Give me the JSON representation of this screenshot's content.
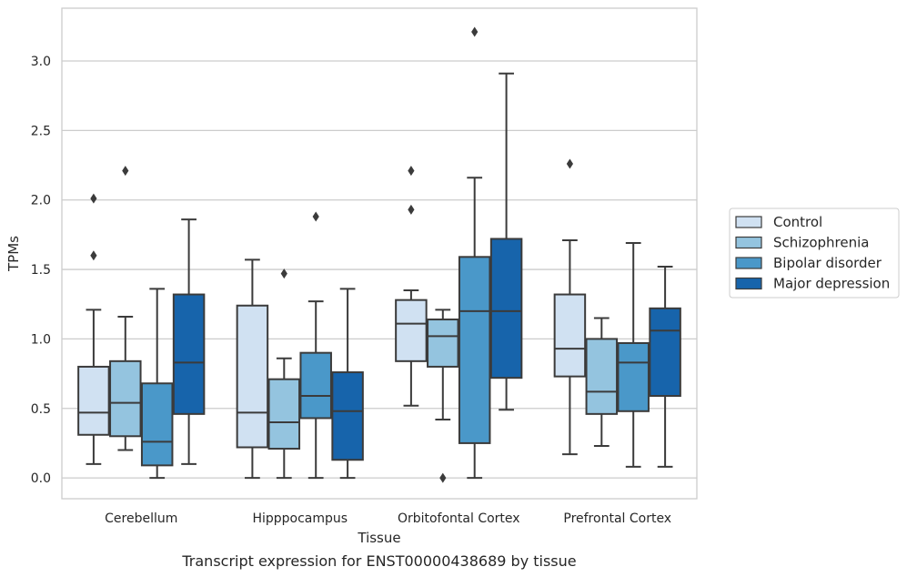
{
  "chart_data": {
    "type": "box",
    "title": "",
    "caption": "Transcript expression for ENST00000438689 by tissue",
    "xlabel": "Tissue",
    "ylabel": "TPMs",
    "ylim": [
      -0.15,
      3.38
    ],
    "yticks": [
      "0.0",
      "0.5",
      "1.0",
      "1.5",
      "2.0",
      "2.5",
      "3.0"
    ],
    "grid": true,
    "legend_position": "right",
    "categories": [
      "Cerebellum",
      "Hipppocampus",
      "Orbitofontal Cortex",
      "Prefrontal Cortex"
    ],
    "series": [
      {
        "name": "Control",
        "color": "#d0e1f2",
        "boxes": [
          {
            "min": 0.1,
            "q1": 0.31,
            "median": 0.47,
            "q3": 0.8,
            "max": 1.21,
            "outliers": [
              1.6,
              2.01
            ]
          },
          {
            "min": 0.0,
            "q1": 0.22,
            "median": 0.47,
            "q3": 1.24,
            "max": 1.57,
            "outliers": []
          },
          {
            "min": 0.52,
            "q1": 0.84,
            "median": 1.11,
            "q3": 1.28,
            "max": 1.35,
            "outliers": [
              1.93,
              2.21
            ]
          },
          {
            "min": 0.17,
            "q1": 0.73,
            "median": 0.93,
            "q3": 1.32,
            "max": 1.71,
            "outliers": [
              2.26
            ]
          }
        ]
      },
      {
        "name": "Schizophrenia",
        "color": "#94c4df",
        "boxes": [
          {
            "min": 0.2,
            "q1": 0.3,
            "median": 0.54,
            "q3": 0.84,
            "max": 1.16,
            "outliers": [
              2.21
            ]
          },
          {
            "min": 0.0,
            "q1": 0.21,
            "median": 0.4,
            "q3": 0.71,
            "max": 0.86,
            "outliers": [
              1.47
            ]
          },
          {
            "min": 0.42,
            "q1": 0.8,
            "median": 1.02,
            "q3": 1.14,
            "max": 1.21,
            "outliers": [
              0.0
            ]
          },
          {
            "min": 0.23,
            "q1": 0.46,
            "median": 0.62,
            "q3": 1.0,
            "max": 1.15,
            "outliers": []
          }
        ]
      },
      {
        "name": "Bipolar disorder",
        "color": "#4a98c9",
        "boxes": [
          {
            "min": 0.0,
            "q1": 0.09,
            "median": 0.26,
            "q3": 0.68,
            "max": 1.36,
            "outliers": []
          },
          {
            "min": 0.0,
            "q1": 0.43,
            "median": 0.59,
            "q3": 0.9,
            "max": 1.27,
            "outliers": [
              1.88
            ]
          },
          {
            "min": 0.0,
            "q1": 0.25,
            "median": 1.2,
            "q3": 1.59,
            "max": 2.16,
            "outliers": [
              3.21
            ]
          },
          {
            "min": 0.08,
            "q1": 0.48,
            "median": 0.83,
            "q3": 0.97,
            "max": 1.69,
            "outliers": []
          }
        ]
      },
      {
        "name": "Major depression",
        "color": "#1764ab",
        "boxes": [
          {
            "min": 0.1,
            "q1": 0.46,
            "median": 0.83,
            "q3": 1.32,
            "max": 1.86,
            "outliers": []
          },
          {
            "min": 0.0,
            "q1": 0.13,
            "median": 0.48,
            "q3": 0.76,
            "max": 1.36,
            "outliers": []
          },
          {
            "min": 0.49,
            "q1": 0.72,
            "median": 1.2,
            "q3": 1.72,
            "max": 2.91,
            "outliers": []
          },
          {
            "min": 0.08,
            "q1": 0.59,
            "median": 1.06,
            "q3": 1.22,
            "max": 1.52,
            "outliers": []
          }
        ]
      }
    ]
  }
}
